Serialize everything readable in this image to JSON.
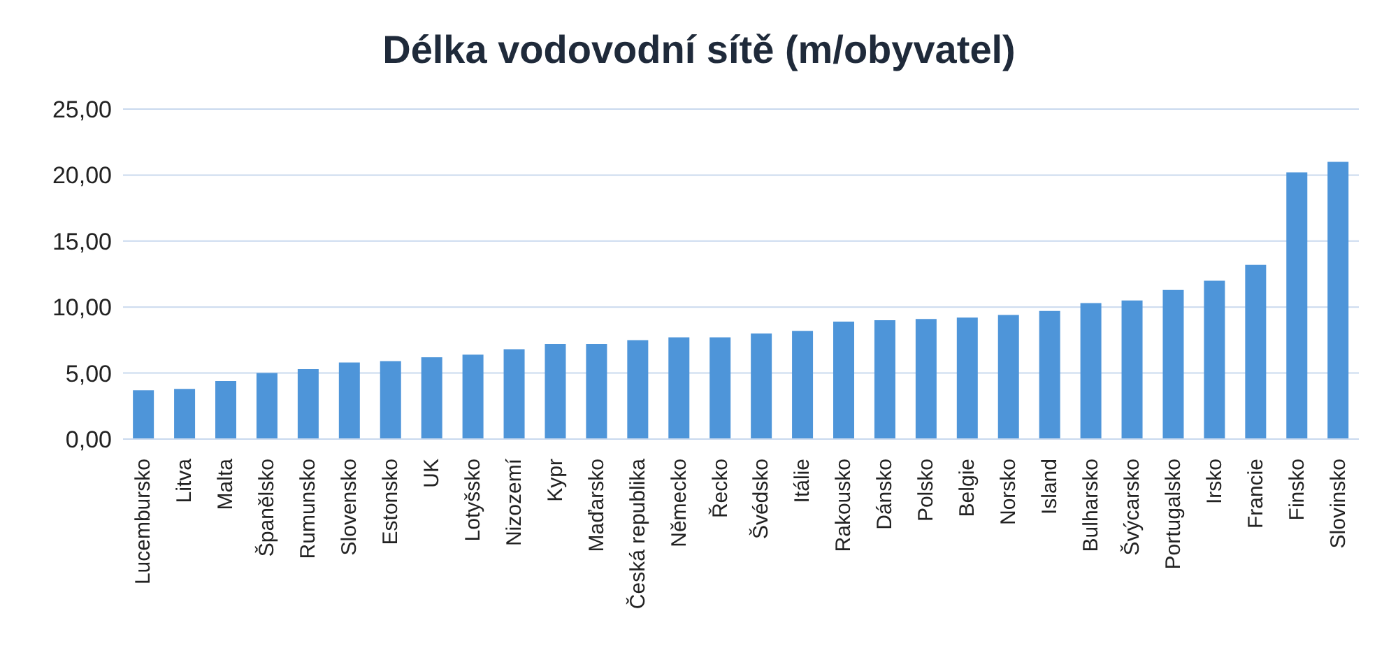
{
  "chart_data": {
    "type": "bar",
    "title": "Délka vodovodní sítě (m/obyvatel)",
    "categories": [
      "Lucembursko",
      "Litva",
      "Malta",
      "Španělsko",
      "Rumunsko",
      "Slovensko",
      "Estonsko",
      "UK",
      "Lotyšsko",
      "Nizozemí",
      "Kypr",
      "Maďarsko",
      "Česká republika",
      "Německo",
      "Řecko",
      "Švédsko",
      "Itálie",
      "Rakousko",
      "Dánsko",
      "Polsko",
      "Belgie",
      "Norsko",
      "Island",
      "Bulharsko",
      "Švýcarsko",
      "Portugalsko",
      "Irsko",
      "Francie",
      "Finsko",
      "Slovinsko"
    ],
    "values": [
      3.7,
      3.8,
      4.4,
      5.0,
      5.3,
      5.8,
      5.9,
      6.2,
      6.4,
      6.8,
      7.2,
      7.2,
      7.5,
      7.7,
      7.7,
      8.0,
      8.2,
      8.9,
      9.0,
      9.1,
      9.2,
      9.4,
      9.7,
      10.3,
      10.5,
      11.3,
      12.0,
      13.2,
      20.2,
      21.0
    ],
    "color": "#4e95d9",
    "ylim": [
      0,
      25
    ],
    "yticks": [
      {
        "value": 0,
        "label": "0,00"
      },
      {
        "value": 5,
        "label": "5,00"
      },
      {
        "value": 10,
        "label": "10,00"
      },
      {
        "value": 15,
        "label": "15,00"
      },
      {
        "value": 20,
        "label": "20,00"
      },
      {
        "value": 25,
        "label": "25,00"
      }
    ],
    "grid": "y",
    "legend": false
  }
}
